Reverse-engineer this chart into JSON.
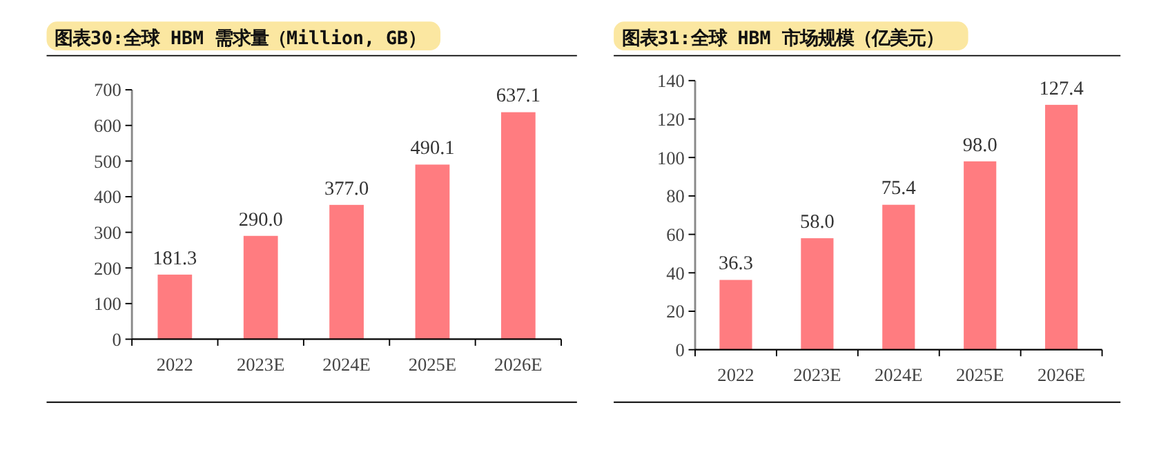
{
  "chart_data": [
    {
      "type": "bar",
      "title": "图表30:全球 HBM 需求量（Million, GB）",
      "categories": [
        "2022",
        "2023E",
        "2024E",
        "2025E",
        "2026E"
      ],
      "values": [
        181.3,
        290.0,
        377.0,
        490.1,
        637.1
      ],
      "value_labels": [
        "181.3",
        "290.0",
        "377.0",
        "490.1",
        "637.1"
      ],
      "color": "#ff7c80",
      "ylim": [
        0,
        700
      ],
      "yticks": [
        0,
        100,
        200,
        300,
        400,
        500,
        600,
        700
      ],
      "grid": false
    },
    {
      "type": "bar",
      "title": "图表31:全球 HBM 市场规模（亿美元）",
      "categories": [
        "2022",
        "2023E",
        "2024E",
        "2025E",
        "2026E"
      ],
      "values": [
        36.3,
        58.0,
        75.4,
        98.0,
        127.4
      ],
      "value_labels": [
        "36.3",
        "58.0",
        "75.4",
        "98.0",
        "127.4"
      ],
      "color": "#ff7c80",
      "ylim": [
        0,
        140
      ],
      "yticks": [
        0,
        20,
        40,
        60,
        80,
        100,
        120,
        140
      ],
      "grid": false
    }
  ]
}
